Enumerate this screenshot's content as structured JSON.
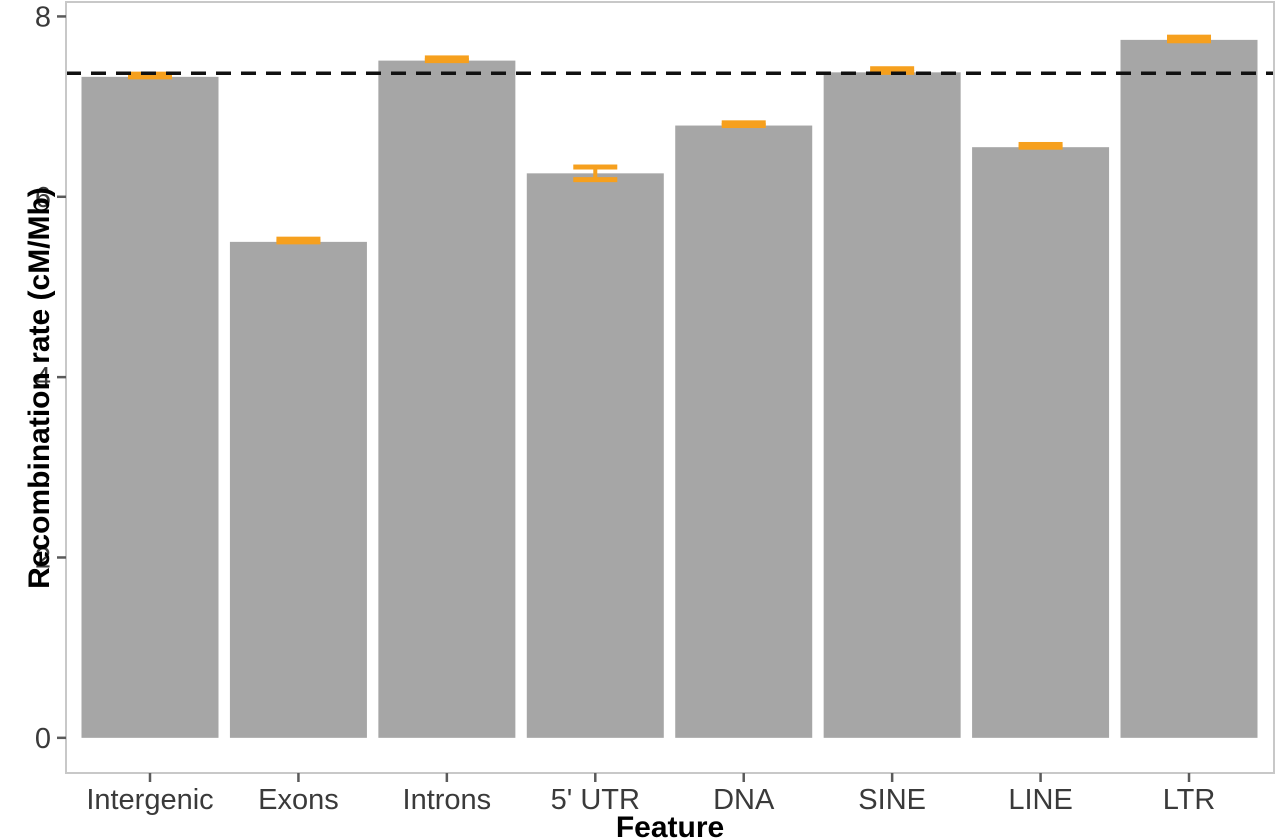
{
  "figure": {
    "background": "#ffffff"
  },
  "chart_data": {
    "type": "bar",
    "xlabel": "Feature",
    "ylabel": "Recombination rate (cM/Mb)",
    "categories": [
      "Intergenic",
      "Exons",
      "Introns",
      "5' UTR",
      "DNA",
      "SINE",
      "LINE",
      "LTR"
    ],
    "values": [
      7.33,
      5.5,
      7.51,
      6.26,
      6.79,
      7.38,
      6.55,
      7.74
    ],
    "error_low": [
      7.33,
      5.5,
      7.51,
      6.19,
      6.79,
      7.38,
      6.55,
      7.73
    ],
    "error_high": [
      7.36,
      5.53,
      7.54,
      6.33,
      6.82,
      7.42,
      6.58,
      7.77
    ],
    "reference_line": 7.37,
    "reference_line_style": "dashed",
    "yticks": [
      "0",
      "2",
      "4",
      "6",
      "8"
    ],
    "ytick_values": [
      0,
      2,
      4,
      6,
      8
    ],
    "ylim": [
      -0.39,
      8.16
    ],
    "grid": false,
    "legend": false,
    "bar_color": "#a6a6a6",
    "error_color": "#f6a01e",
    "reference_color": "#111111",
    "panel_border_color": "#c8c8c8",
    "tick_color": "#5a5a5a",
    "tick_label_color": "#3a3a3a"
  }
}
